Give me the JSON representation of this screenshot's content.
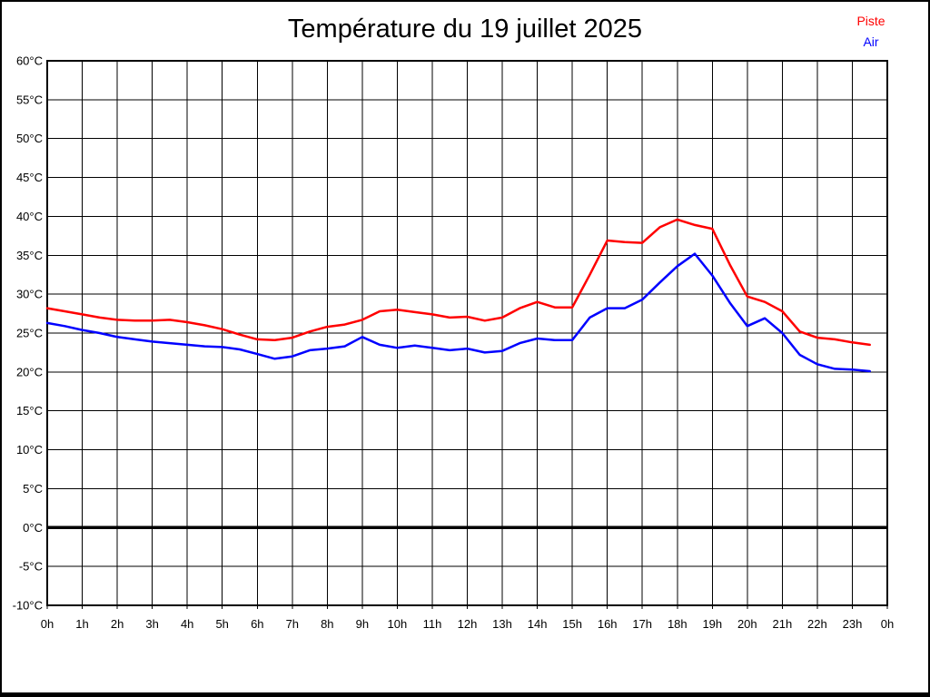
{
  "page": {
    "title": "Température du 19 juillet 2025"
  },
  "legend": {
    "position": "top-right",
    "items": [
      {
        "label": "Piste",
        "color": "#ff0000"
      },
      {
        "label": "Air",
        "color": "#0000ff"
      }
    ]
  },
  "chart_data": {
    "type": "line",
    "title": "Température du 19 juillet 2025",
    "grid": true,
    "legend_position": "top-right",
    "xlim": [
      0,
      24
    ],
    "ylim": [
      -10,
      60
    ],
    "x_step_hours": 1,
    "y_step_degrees": 5,
    "zero_line_bold": true,
    "x_tick_labels": [
      "0h",
      "1h",
      "2h",
      "3h",
      "4h",
      "5h",
      "6h",
      "7h",
      "8h",
      "9h",
      "10h",
      "11h",
      "12h",
      "13h",
      "14h",
      "15h",
      "16h",
      "17h",
      "18h",
      "19h",
      "20h",
      "21h",
      "22h",
      "23h",
      "0h"
    ],
    "y_tick_labels": [
      "60°C",
      "55°C",
      "50°C",
      "45°C",
      "40°C",
      "35°C",
      "30°C",
      "25°C",
      "20°C",
      "15°C",
      "10°C",
      "5°C",
      "0°C",
      "-5°C",
      "-10°C"
    ],
    "x_unit": "h",
    "y_unit": "°C",
    "x": [
      0,
      0.5,
      1,
      1.5,
      2,
      2.5,
      3,
      3.5,
      4,
      4.5,
      5,
      5.5,
      6,
      6.5,
      7,
      7.5,
      8,
      8.5,
      9,
      9.5,
      10,
      10.5,
      11,
      11.5,
      12,
      12.5,
      13,
      13.5,
      14,
      14.5,
      15,
      15.5,
      16,
      16.5,
      17,
      17.5,
      18,
      18.5,
      19,
      19.5,
      20,
      20.5,
      21,
      21.5,
      22,
      22.5,
      23,
      23.5
    ],
    "series": [
      {
        "name": "Piste",
        "color": "#ff0000",
        "values": [
          28.2,
          27.8,
          27.4,
          27.0,
          26.7,
          26.6,
          26.6,
          26.7,
          26.4,
          26.0,
          25.5,
          24.8,
          24.2,
          24.1,
          24.4,
          25.2,
          25.8,
          26.1,
          26.7,
          27.8,
          28.0,
          27.7,
          27.4,
          27.0,
          27.1,
          26.6,
          27.0,
          28.2,
          29.0,
          28.3,
          28.3,
          32.5,
          36.9,
          36.7,
          36.6,
          38.6,
          39.6,
          38.9,
          38.4,
          33.8,
          29.7,
          29.0,
          27.8,
          25.2,
          24.4,
          24.2,
          23.8,
          23.5
        ]
      },
      {
        "name": "Air",
        "color": "#0000ff",
        "values": [
          26.3,
          25.9,
          25.4,
          25.0,
          24.5,
          24.2,
          23.9,
          23.7,
          23.5,
          23.3,
          23.2,
          22.9,
          22.3,
          21.7,
          22.0,
          22.8,
          23.0,
          23.3,
          24.5,
          23.5,
          23.1,
          23.4,
          23.1,
          22.8,
          23.0,
          22.5,
          22.7,
          23.7,
          24.3,
          24.1,
          24.1,
          27.0,
          28.2,
          28.2,
          29.3,
          31.5,
          33.6,
          35.2,
          32.4,
          28.9,
          25.9,
          26.9,
          25.0,
          22.2,
          21.0,
          20.4,
          20.3,
          20.1
        ]
      }
    ]
  }
}
